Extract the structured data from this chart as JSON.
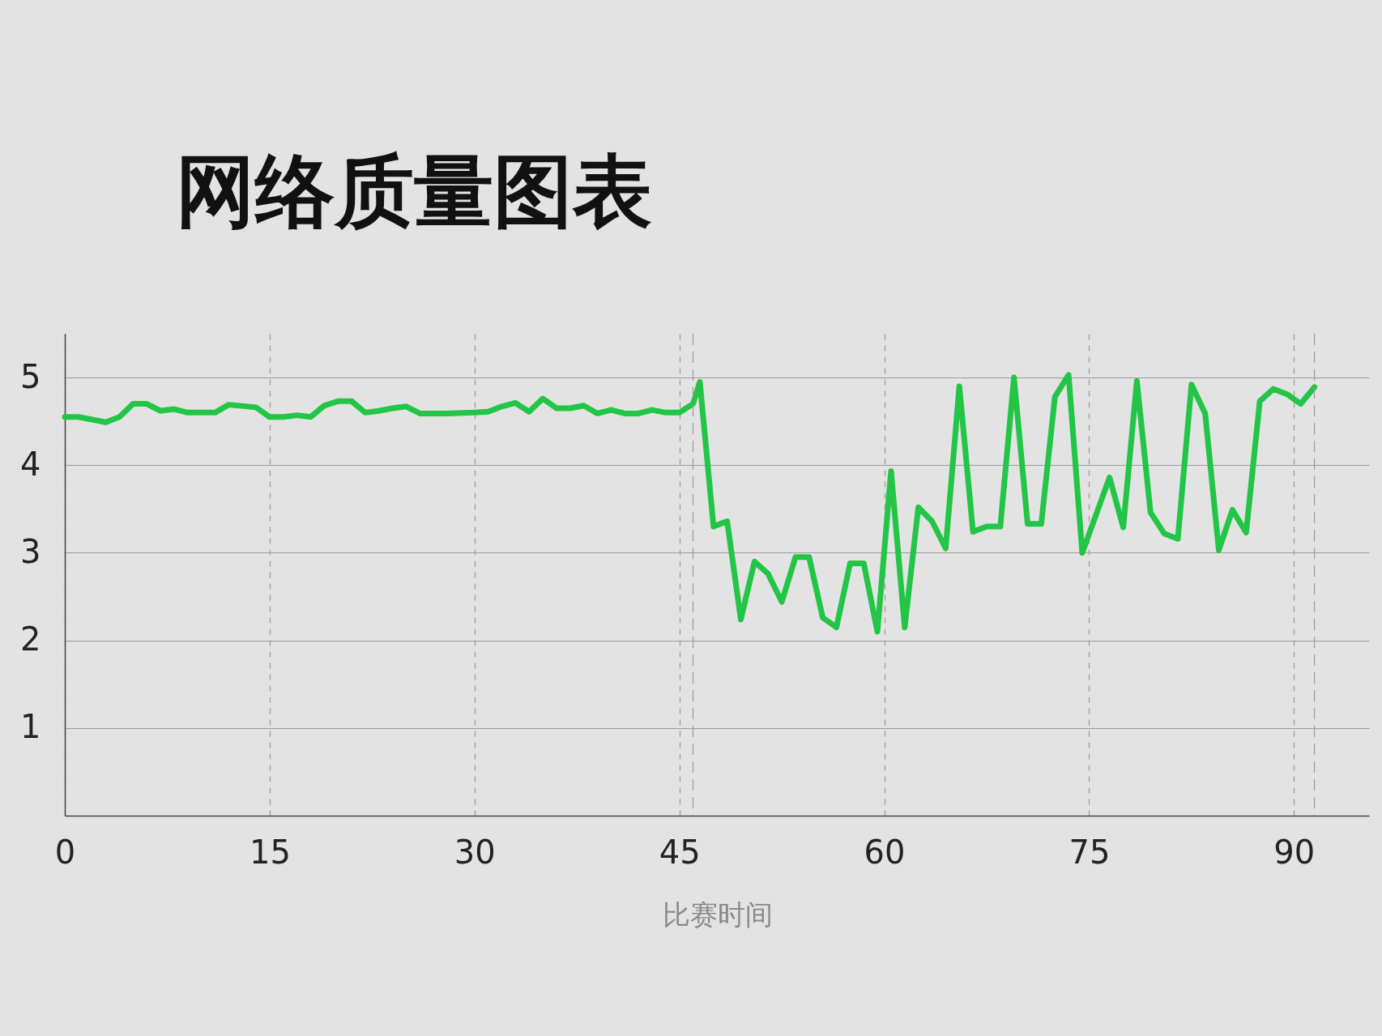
{
  "chart_data": {
    "type": "line",
    "title": "网络质量图表",
    "xlabel": "比赛时间",
    "x": [
      0,
      1,
      3,
      4,
      5,
      6,
      7,
      8,
      9,
      11,
      12,
      14,
      15,
      16,
      17,
      18,
      19,
      20,
      21,
      22,
      23,
      24,
      25,
      26,
      28,
      30,
      31,
      32,
      33,
      34,
      35,
      36,
      37,
      38,
      39,
      40,
      41,
      42,
      43,
      44,
      45,
      46,
      46.5,
      47.5,
      48.5,
      49.5,
      50.5,
      51.5,
      52.5,
      53.5,
      54.5,
      55.5,
      56.5,
      57.5,
      58.5,
      59.5,
      60.5,
      61.5,
      62.5,
      63.5,
      64.5,
      65.5,
      66.5,
      67.5,
      68.5,
      69.5,
      70.5,
      71.5,
      72.5,
      73.5,
      74.5,
      76.5,
      77.5,
      78.5,
      79.5,
      80.5,
      81.5,
      82.5,
      83.5,
      84.5,
      85.5,
      86.5,
      87.5,
      88.5,
      89.5,
      90.5,
      91.5
    ],
    "series": [
      {
        "color": "#22c545",
        "values": [
          4.55,
          4.55,
          4.49,
          4.55,
          4.7,
          4.7,
          4.62,
          4.64,
          4.6,
          4.6,
          4.69,
          4.66,
          4.55,
          4.55,
          4.57,
          4.55,
          4.68,
          4.73,
          4.73,
          4.6,
          4.62,
          4.65,
          4.67,
          4.59,
          4.59,
          4.6,
          4.61,
          4.67,
          4.71,
          4.61,
          4.76,
          4.65,
          4.65,
          4.68,
          4.59,
          4.63,
          4.59,
          4.59,
          4.63,
          4.6,
          4.6,
          4.7,
          4.95,
          3.3,
          3.36,
          2.24,
          2.9,
          2.76,
          2.44,
          2.95,
          2.95,
          2.26,
          2.15,
          2.88,
          2.88,
          2.1,
          3.93,
          2.15,
          3.52,
          3.36,
          3.05,
          4.9,
          3.24,
          3.3,
          3.3,
          5.0,
          3.33,
          3.33,
          4.78,
          5.03,
          3.0,
          3.86,
          3.29,
          4.96,
          3.46,
          3.22,
          3.16,
          4.92,
          4.59,
          3.03,
          3.49,
          3.23,
          4.73,
          4.87,
          4.81,
          4.7,
          4.89
        ]
      }
    ],
    "xlim": [
      0,
      95.5
    ],
    "xticks": [
      0,
      15,
      30,
      45,
      60,
      75,
      90
    ],
    "ylim": [
      0,
      5.5
    ],
    "yticks": [
      1,
      2,
      3,
      4,
      5
    ],
    "grid": true,
    "ref_lines": [
      {
        "axis": "x",
        "value": 46,
        "color": "#9a9a9a",
        "line_style": "dashed"
      },
      {
        "axis": "x",
        "value": 91.5,
        "color": "#9a9a9a",
        "line_style": "dashed"
      }
    ],
    "line_style": "solid",
    "marker": "none"
  }
}
